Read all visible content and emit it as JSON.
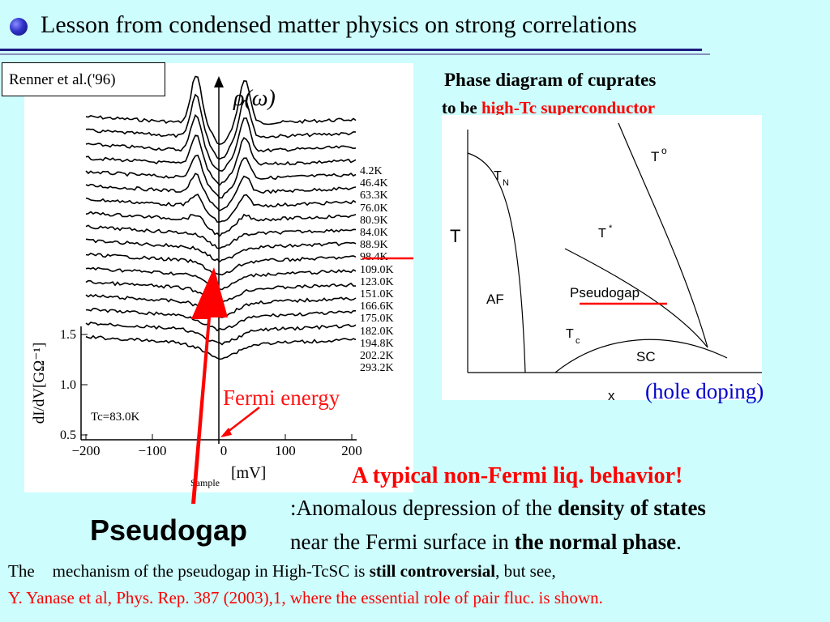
{
  "title": "Lesson from condensed matter physics on strong correlations",
  "left_figure": {
    "citation": "Renner et al.('96)",
    "rho_label": "ρ(ω)",
    "y_axis_label": "dI/dV[GΩ⁻¹]",
    "y_ticks": [
      "1.5",
      "1.0",
      "0.5"
    ],
    "x_ticks": [
      "−200",
      "−100",
      "0",
      "100",
      "200"
    ],
    "x_axis_label_sub": "Sample",
    "x_axis_unit": "[mV]",
    "tc_label": "Tc=83.0K",
    "temperatures": [
      "4.2K",
      "46.4K",
      "63.3K",
      "76.0K",
      "80.9K",
      "84.0K",
      "88.9K",
      "98.4K",
      "109.0K",
      "123.0K",
      "151.0K",
      "166.6K",
      "175.0K",
      "182.0K",
      "194.8K",
      "202.2K",
      "293.2K"
    ]
  },
  "phase_diagram": {
    "heading_line1": "Phase diagram of cuprates",
    "heading_line2_prefix": "to be ",
    "heading_line2_red": "high-Tc superconductor",
    "t_axis": "T",
    "x_axis": "x",
    "hole_doping": "(hole doping)",
    "labels": {
      "tn": "T",
      "tn_sub": "N",
      "t0": "T",
      "t0_sup": "o",
      "tstar": "T",
      "tstar_sup": "*",
      "af": "AF",
      "pseudogap": "Pseudogap",
      "tc": "T",
      "tc_sub": "c",
      "sc": "SC"
    }
  },
  "fermi_energy_label": "Fermi energy",
  "pseudogap_label": "Pseudogap",
  "non_fermi_heading": "A typical non-Fermi liq. behavior!",
  "anomalous": {
    "line1_prefix": ":Anomalous depression of the ",
    "line1_bold": "density of states",
    "line2_prefix": "near the Fermi surface in ",
    "line2_bold": "the normal phase",
    "line2_suffix": "."
  },
  "mechanism": {
    "the": "The",
    "prefix": "mechanism of the pseudogap in High-TcSC is ",
    "bold": "still controversial",
    "suffix": ", but see,"
  },
  "reference": "Y. Yanase et al,  Phys. Rep. 387 (2003),1, where the essential role of pair fluc. is shown.",
  "colors": {
    "background": "#cdfdfd",
    "accent_red": "#ff0000",
    "blue": "#0000cc",
    "rule": "#1c1c80"
  }
}
